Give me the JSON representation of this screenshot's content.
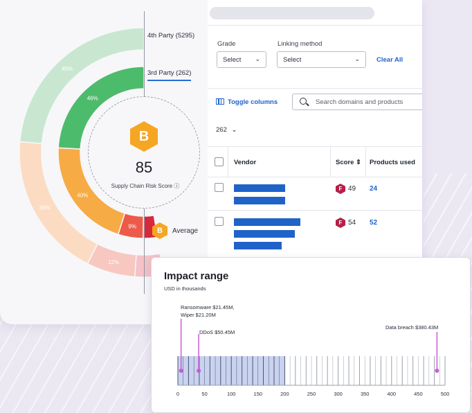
{
  "colors": {
    "outer_ring_light_green": "#c9e7d0",
    "inner_ring_green": "#4dbb6c",
    "inner_ring_orange": "#f7ab45",
    "outer_ring_peach": "#fbdcc2",
    "red_segment": "#ee5a4a",
    "pink_segment": "#f4c2c8",
    "accent_blue": "#1f63c8",
    "grade_b": "#f5a623",
    "grade_f": "#b51f48",
    "impact_band": "#c9d2ee",
    "marker_magenta": "#c85ad6"
  },
  "donut": {
    "tier4_label": "4th Party (5295)",
    "tier3_label": "3rd Party (262)",
    "segments_outer": [
      {
        "label": "45%",
        "value": 45,
        "color": "#c9e7d0"
      },
      {
        "label": "36%",
        "value": 36,
        "color": "#fbdcc2"
      },
      {
        "label": "12%",
        "value": 12,
        "color": "#f8c7c0"
      },
      {
        "label": "",
        "value": 7,
        "color": "#f4c2c8"
      }
    ],
    "segments_inner": [
      {
        "label": "46%",
        "value": 46,
        "color": "#4dbb6c"
      },
      {
        "label": "40%",
        "value": 40,
        "color": "#f7ab45"
      },
      {
        "label": "9%",
        "value": 9,
        "color": "#ee5a4a"
      },
      {
        "label": "",
        "value": 5,
        "color": "#d8283c"
      }
    ],
    "grade": "B",
    "score": "85",
    "score_caption": "Supply Chain Risk Score ⓘ",
    "average_grade": "B",
    "average_label": "Average"
  },
  "filters": {
    "grade_label": "Grade",
    "grade_value": "Select",
    "linking_label": "Linking method",
    "linking_value": "Select",
    "clear_all": "Clear All"
  },
  "toolbar": {
    "toggle_columns": "Toggle columns",
    "search_placeholder": "Search domains and products",
    "count": "262"
  },
  "table": {
    "headers": {
      "vendor": "Vendor",
      "score": "Score ⇕",
      "products": "Products used"
    },
    "rows": [
      {
        "grade": "F",
        "score": "49",
        "products": "24"
      },
      {
        "grade": "F",
        "score": "54",
        "products": "52"
      }
    ]
  },
  "impact": {
    "title": "Impact range",
    "subtitle": "USD in thousands",
    "annotations": {
      "ransomware": "Ransomware $21.45M,",
      "wiper": "Wiper $21.20M",
      "ddos": "DDoS $50.45M",
      "data_breach": "Data breach $380.43M"
    },
    "axis_ticks": [
      "0",
      "50",
      "100",
      "150",
      "200",
      "250",
      "300",
      "350",
      "400",
      "450",
      "500"
    ]
  },
  "chart_data": {
    "type": "scatter",
    "title": "Impact range",
    "subtitle": "USD in thousands",
    "xlim": [
      0,
      500
    ],
    "band": [
      0,
      200
    ],
    "points": [
      {
        "label": "Ransomware $21.45M,",
        "x": 6
      },
      {
        "label": "DDoS $50.45M",
        "x": 39
      },
      {
        "label": "Data breach $380.43M",
        "x": 485
      }
    ]
  }
}
